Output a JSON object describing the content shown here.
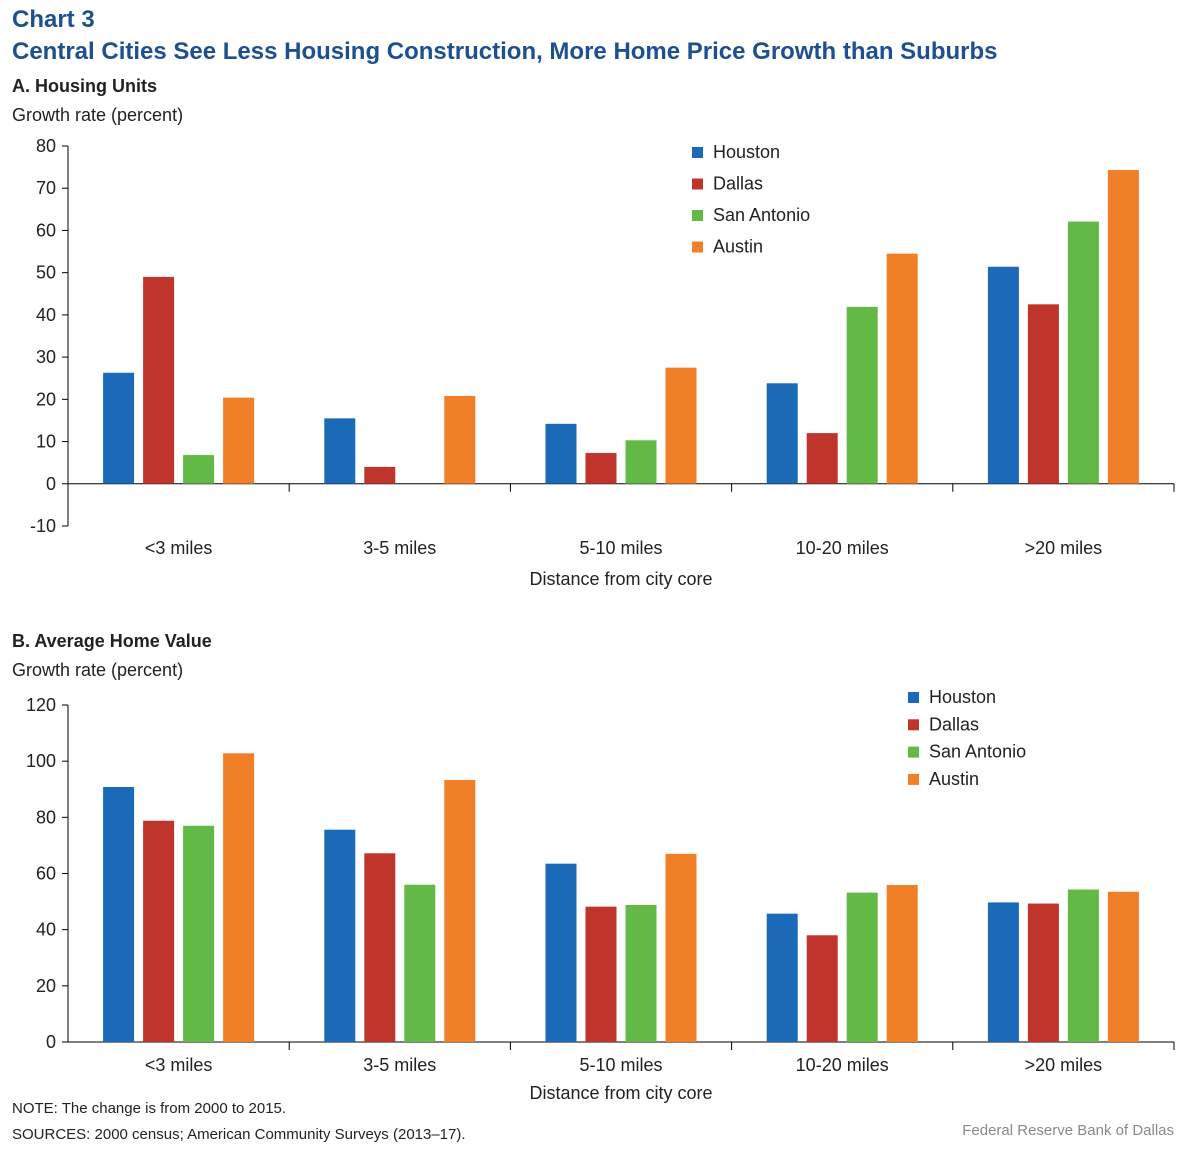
{
  "header": {
    "chart_number": "Chart 3",
    "title": "Central Cities See Less Housing Construction, More Home Price Growth than Suburbs"
  },
  "colors": {
    "Houston": "#1a6ab8",
    "Dallas": "#c0352b",
    "San Antonio": "#62b946",
    "Austin": "#f07f28",
    "title": "#1d4f91"
  },
  "chart_data": [
    {
      "type": "bar",
      "title": "A. Housing Units",
      "ylabel": "Growth rate (percent)",
      "xlabel": "Distance from city core",
      "categories": [
        "<3 miles",
        "3-5 miles",
        "5-10 miles",
        "10-20 miles",
        ">20 miles"
      ],
      "ylim": [
        -10,
        80
      ],
      "yticks": [
        -10,
        0,
        10,
        20,
        30,
        40,
        50,
        60,
        70,
        80
      ],
      "legend_position": "top-right",
      "series": [
        {
          "name": "Houston",
          "values": [
            26.3,
            15.5,
            14.2,
            23.8,
            51.4
          ]
        },
        {
          "name": "Dallas",
          "values": [
            49.0,
            4.0,
            7.3,
            12.0,
            42.5
          ]
        },
        {
          "name": "San Antonio",
          "values": [
            6.8,
            0,
            10.3,
            41.9,
            62.1
          ]
        },
        {
          "name": "Austin",
          "values": [
            20.4,
            20.8,
            27.5,
            54.5,
            74.3
          ]
        }
      ]
    },
    {
      "type": "bar",
      "title": "B. Average Home Value",
      "ylabel": "Growth rate (percent)",
      "xlabel": "Distance from city core",
      "categories": [
        "<3 miles",
        "3-5 miles",
        "5-10 miles",
        "10-20 miles",
        ">20 miles"
      ],
      "ylim": [
        0,
        120
      ],
      "yticks": [
        0,
        20,
        40,
        60,
        80,
        100,
        120
      ],
      "legend_position": "top-right",
      "series": [
        {
          "name": "Houston",
          "values": [
            90.8,
            75.6,
            63.5,
            45.7,
            49.7
          ]
        },
        {
          "name": "Dallas",
          "values": [
            78.8,
            67.2,
            48.2,
            38.0,
            49.3
          ]
        },
        {
          "name": "San Antonio",
          "values": [
            77.0,
            56.0,
            48.8,
            53.2,
            54.3
          ]
        },
        {
          "name": "Austin",
          "values": [
            102.8,
            93.3,
            67.0,
            55.9,
            53.5
          ]
        }
      ]
    }
  ],
  "footer": {
    "note": "NOTE: The change is from 2000 to 2015.",
    "sources": "SOURCES: 2000 census; American Community Surveys (2013–17).",
    "credit": "Federal Reserve Bank of Dallas"
  }
}
